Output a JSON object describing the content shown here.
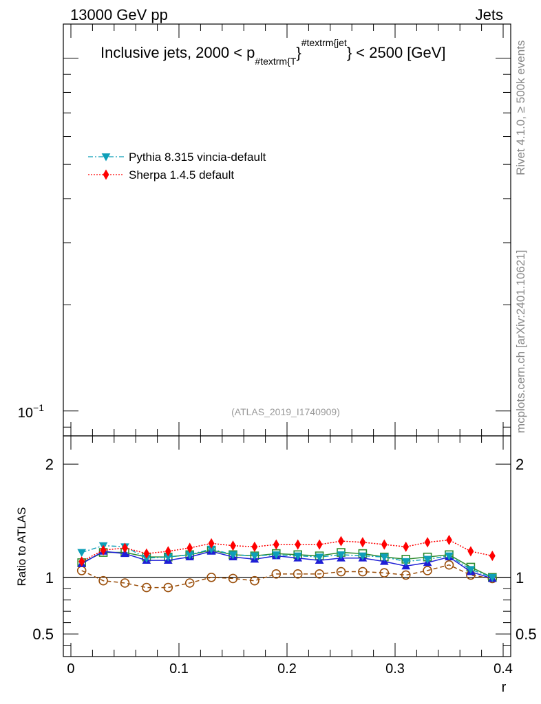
{
  "header": {
    "left": "13000 GeV pp",
    "right": "Jets"
  },
  "side_text": {
    "top": "Rivet 4.1.0, ≥ 500k events",
    "bottom": "mcplots.cern.ch [arXiv:2401.10621]"
  },
  "chart_data": {
    "type": "line",
    "title_parts": {
      "pre": "Inclusive jets, 2000 < p",
      "sub": "#textrm{T",
      "close": "}",
      "sup": "#textrm{jet",
      "post": "} < 2500 [GeV]"
    },
    "watermark": "(ATLAS_2019_I1740909)",
    "upper_axis": {
      "scale": "log",
      "range": [
        0.085,
        1.25
      ],
      "tick_label": "10",
      "tick_label_exp": "−1"
    },
    "lower_axis": {
      "ylabel": "Ratio to ATLAS",
      "ylim": [
        0.3,
        2.25
      ],
      "yticks": [
        0.5,
        1,
        2
      ],
      "ytick_labels": [
        "0.5",
        "1",
        "2"
      ],
      "xlabel": "r",
      "xlim": [
        -0.007,
        0.407
      ],
      "xticks": [
        0,
        0.1,
        0.2,
        0.3,
        0.4
      ],
      "xtick_labels": [
        "0",
        "0.1",
        "0.2",
        "0.3",
        "0.4"
      ]
    },
    "legend": [
      {
        "label": "Pythia 8.315 vincia-default",
        "color": "#0e9fb8",
        "marker": "triangle-down",
        "dash": "dashdot"
      },
      {
        "label": "Sherpa 1.4.5 default",
        "color": "#ff0000",
        "marker": "diamond",
        "dash": "dotted"
      }
    ],
    "x": [
      0.01,
      0.03,
      0.05,
      0.07,
      0.09,
      0.11,
      0.13,
      0.15,
      0.17,
      0.19,
      0.21,
      0.23,
      0.25,
      0.27,
      0.29,
      0.31,
      0.33,
      0.35,
      0.37,
      0.39
    ],
    "series": [
      {
        "name": "Pythia 8.315 vincia-default",
        "color": "#0e9fb8",
        "marker": "triangle-down",
        "dash": "dashdot",
        "values": [
          1.22,
          1.28,
          1.27,
          1.17,
          1.18,
          1.2,
          1.25,
          1.2,
          1.19,
          1.2,
          1.19,
          1.18,
          1.2,
          1.19,
          1.18,
          1.14,
          1.16,
          1.19,
          1.07,
          1.0
        ]
      },
      {
        "name": "Sherpa 1.4.5 default",
        "color": "#ff0000",
        "marker": "diamond",
        "dash": "dotted",
        "values": [
          1.14,
          1.24,
          1.26,
          1.21,
          1.23,
          1.26,
          1.3,
          1.28,
          1.27,
          1.29,
          1.29,
          1.29,
          1.32,
          1.31,
          1.29,
          1.27,
          1.31,
          1.33,
          1.23,
          1.19
        ]
      },
      {
        "name": "green squares",
        "color": "#2e8b2e",
        "marker": "square-open",
        "dash": "solid",
        "values": [
          1.13,
          1.22,
          1.22,
          1.18,
          1.18,
          1.2,
          1.24,
          1.2,
          1.19,
          1.21,
          1.2,
          1.19,
          1.22,
          1.21,
          1.18,
          1.16,
          1.18,
          1.2,
          1.09,
          1.0
        ]
      },
      {
        "name": "blue triangles",
        "color": "#1f1fd6",
        "marker": "triangle-up",
        "dash": "solid",
        "values": [
          1.12,
          1.23,
          1.21,
          1.15,
          1.15,
          1.18,
          1.23,
          1.18,
          1.16,
          1.19,
          1.17,
          1.15,
          1.17,
          1.17,
          1.14,
          1.1,
          1.13,
          1.18,
          1.05,
          0.99
        ]
      },
      {
        "name": "brown circles",
        "color": "#9a4e0a",
        "marker": "circle-open",
        "dash": "dashed",
        "values": [
          1.06,
          0.97,
          0.95,
          0.91,
          0.91,
          0.95,
          1.0,
          0.99,
          0.97,
          1.03,
          1.03,
          1.03,
          1.05,
          1.05,
          1.04,
          1.02,
          1.06,
          1.11,
          1.02,
          0.99
        ]
      }
    ]
  }
}
